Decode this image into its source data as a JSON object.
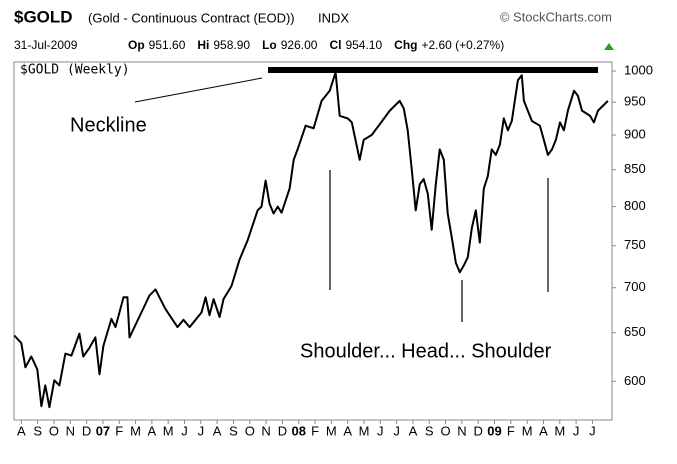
{
  "chart_data": {
    "type": "line",
    "title": "$GOLD",
    "subtitle": "(Gold - Continuous Contract (EOD))",
    "exchange": "INDX",
    "source": "© StockCharts.com",
    "date": "31-Jul-2009",
    "quote": [
      {
        "label": "Op",
        "value": "951.60"
      },
      {
        "label": "Hi",
        "value": "958.90"
      },
      {
        "label": "Lo",
        "value": "926.00"
      },
      {
        "label": "Cl",
        "value": "954.10"
      },
      {
        "label": "Chg",
        "value": "+2.60 (+0.27%)"
      }
    ],
    "annotations": [
      "Neckline",
      "Shoulder... Head... Shoulder"
    ],
    "log": true,
    "grid": false,
    "xlim": [
      -0.45,
      36.2
    ],
    "xticks": [
      {
        "value": 0,
        "label": "A"
      },
      {
        "value": 1,
        "label": "S"
      },
      {
        "value": 2,
        "label": "O"
      },
      {
        "value": 3,
        "label": "N"
      },
      {
        "value": 4,
        "label": "D"
      },
      {
        "value": 5,
        "label": "07"
      },
      {
        "value": 6,
        "label": "F"
      },
      {
        "value": 7,
        "label": "M"
      },
      {
        "value": 8,
        "label": "A"
      },
      {
        "value": 9,
        "label": "M"
      },
      {
        "value": 10,
        "label": "J"
      },
      {
        "value": 11,
        "label": "J"
      },
      {
        "value": 12,
        "label": "A"
      },
      {
        "value": 13,
        "label": "S"
      },
      {
        "value": 14,
        "label": "O"
      },
      {
        "value": 15,
        "label": "N"
      },
      {
        "value": 16,
        "label": "D"
      },
      {
        "value": 17,
        "label": "08"
      },
      {
        "value": 18,
        "label": "F"
      },
      {
        "value": 19,
        "label": "M"
      },
      {
        "value": 20,
        "label": "A"
      },
      {
        "value": 21,
        "label": "M"
      },
      {
        "value": 22,
        "label": "J"
      },
      {
        "value": 23,
        "label": "J"
      },
      {
        "value": 24,
        "label": "A"
      },
      {
        "value": 25,
        "label": "S"
      },
      {
        "value": 26,
        "label": "O"
      },
      {
        "value": 27,
        "label": "N"
      },
      {
        "value": 28,
        "label": "D"
      },
      {
        "value": 29,
        "label": "09"
      },
      {
        "value": 30,
        "label": "F"
      },
      {
        "value": 31,
        "label": "M"
      },
      {
        "value": 32,
        "label": "A"
      },
      {
        "value": 33,
        "label": "M"
      },
      {
        "value": 34,
        "label": "J"
      },
      {
        "value": 35,
        "label": "J"
      }
    ],
    "ylim": [
      563,
      1015
    ],
    "yticks": [
      600,
      650,
      700,
      750,
      800,
      850,
      900,
      950,
      1000
    ],
    "x": [
      -0.43,
      0,
      0.25,
      0.61,
      0.98,
      1.23,
      1.47,
      1.72,
      2.02,
      2.33,
      2.7,
      3.07,
      3.56,
      3.8,
      4.17,
      4.54,
      4.79,
      5.03,
      5.52,
      5.77,
      6.26,
      6.5,
      6.63,
      7.36,
      7.85,
      8.22,
      8.83,
      9.57,
      9.94,
      10.31,
      11.04,
      11.29,
      11.53,
      11.78,
      12.15,
      12.39,
      12.88,
      13.37,
      13.87,
      14.48,
      14.72,
      14.97,
      15.21,
      15.46,
      15.71,
      15.95,
      16.44,
      16.69,
      16.93,
      17.42,
      17.91,
      18.4,
      18.9,
      19.26,
      19.51,
      20,
      20.25,
      20.74,
      20.98,
      21.47,
      21.96,
      22.58,
      23.19,
      23.44,
      23.68,
      23.93,
      24.17,
      24.42,
      24.66,
      24.91,
      25.15,
      25.4,
      25.64,
      25.89,
      26.13,
      26.38,
      26.63,
      26.87,
      27.12,
      27.36,
      27.61,
      27.85,
      28.1,
      28.34,
      28.59,
      28.83,
      29.08,
      29.33,
      29.57,
      29.82,
      30.06,
      30.43,
      30.67,
      30.8,
      31.29,
      31.78,
      32.02,
      32.27,
      32.52,
      32.76,
      33.01,
      33.25,
      33.5,
      33.87,
      34.11,
      34.36,
      34.85,
      35.09,
      35.34,
      35.95
    ],
    "series": [
      {
        "name": "$GOLD (Weekly)",
        "color": "#000000",
        "values": [
          647,
          639,
          614,
          625,
          612,
          576,
          596,
          575,
          601,
          596,
          628,
          626,
          649,
          625,
          634,
          645,
          607,
          636,
          665,
          656,
          689,
          689,
          645,
          672,
          691,
          698,
          676,
          656,
          664,
          656,
          672,
          689,
          669,
          687,
          667,
          687,
          702,
          733,
          757,
          795,
          800,
          835,
          804,
          791,
          800,
          792,
          824,
          864,
          879,
          914,
          910,
          952,
          968,
          998,
          929,
          925,
          919,
          864,
          893,
          900,
          916,
          937,
          952,
          940,
          907,
          850,
          795,
          830,
          837,
          817,
          770,
          830,
          879,
          864,
          791,
          760,
          729,
          718,
          726,
          736,
          772,
          795,
          754,
          824,
          841,
          879,
          871,
          886,
          925,
          907,
          921,
          985,
          993,
          952,
          921,
          914,
          893,
          871,
          879,
          893,
          919,
          907,
          937,
          968,
          960,
          937,
          929,
          919,
          937,
          952
        ]
      }
    ]
  }
}
